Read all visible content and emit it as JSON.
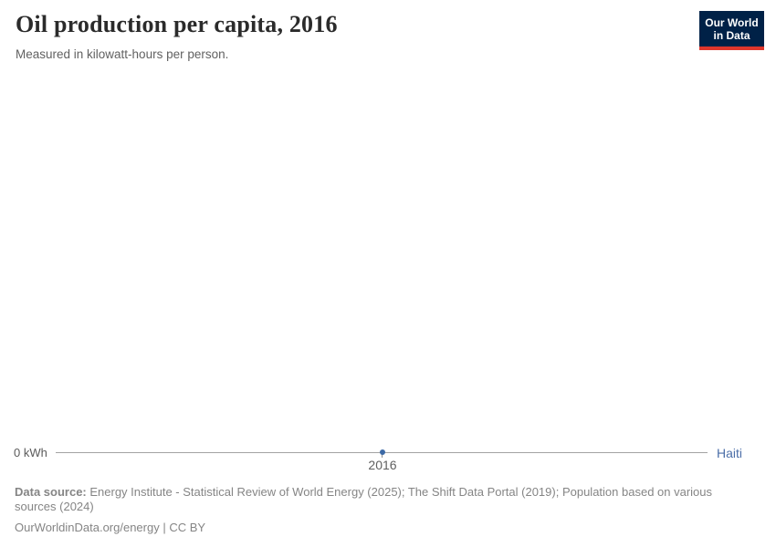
{
  "header": {
    "title": "Oil production per capita, 2016",
    "subtitle": "Measured in kilowatt-hours per person.",
    "logo": {
      "line1": "Our World",
      "line2": "in Data",
      "bg_color": "#002147",
      "accent_color": "#e0362c"
    }
  },
  "chart_data": {
    "type": "line",
    "title": "Oil production per capita, 2016",
    "subtitle": "Measured in kilowatt-hours per person.",
    "unit": "kilowatt-hours per person",
    "x": [
      2016
    ],
    "x_ticks": [
      "2016"
    ],
    "y_ticks": [
      "0 kWh"
    ],
    "ylim": [
      0,
      0
    ],
    "grid": false,
    "legend_position": "right",
    "series": [
      {
        "name": "Haiti",
        "values": [
          0
        ],
        "color": "#4c6fa8",
        "point_color": "#3d6aa6"
      }
    ]
  },
  "axis": {
    "y_zero_label": "0 kWh",
    "x_tick_label": "2016"
  },
  "footer": {
    "data_source_label": "Data source:",
    "data_source_text": " Energy Institute - Statistical Review of World Energy (2025); The Shift Data Portal (2019); Population based on various sources (2024)",
    "license_text": "OurWorldinData.org/energy | CC BY"
  }
}
